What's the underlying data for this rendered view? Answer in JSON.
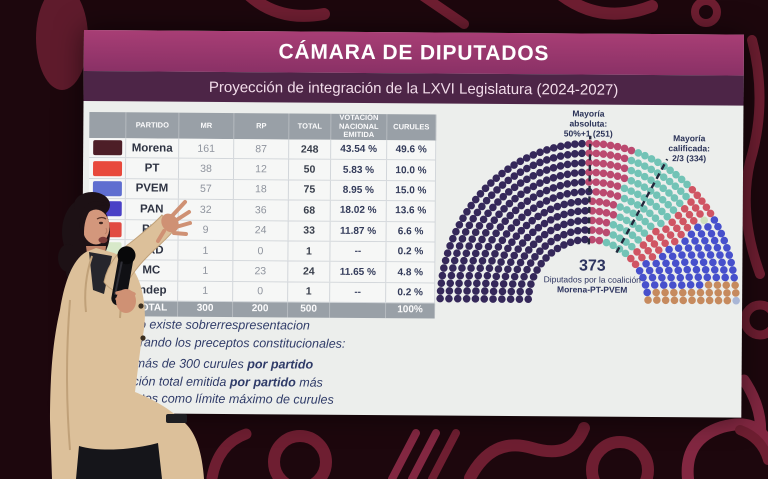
{
  "slide": {
    "title": "CÁMARA DE DIPUTADOS",
    "subtitle": "Proyección de integración de la LXVI Legislatura (2024-2027)"
  },
  "table": {
    "columns": [
      "PARTIDO",
      "MR",
      "RP",
      "TOTAL",
      "VOTACIÓN NACIONAL EMITIDA",
      "CURULES"
    ],
    "rows": [
      {
        "party": "Morena",
        "color": "#4d1e27",
        "mr": "161",
        "rp": "87",
        "total": "248",
        "votacion": "43.54 %",
        "curules": "49.6 %"
      },
      {
        "party": "PT",
        "color": "#e8493c",
        "mr": "38",
        "rp": "12",
        "total": "50",
        "votacion": "5.83 %",
        "curules": "10.0 %"
      },
      {
        "party": "PVEM",
        "color": "#5f6ed0",
        "mr": "57",
        "rp": "18",
        "total": "75",
        "votacion": "8.95 %",
        "curules": "15.0 %"
      },
      {
        "party": "PAN",
        "color": "#4a41c6",
        "mr": "32",
        "rp": "36",
        "total": "68",
        "votacion": "18.02 %",
        "curules": "13.6 %"
      },
      {
        "party": "PRI",
        "color": "#e14b42",
        "mr": "9",
        "rp": "24",
        "total": "33",
        "votacion": "11.87 %",
        "curules": "6.6 %"
      },
      {
        "party": "PRD",
        "color": "#d7e8c9",
        "mr": "1",
        "rp": "0",
        "total": "1",
        "votacion": "--",
        "curules": "0.2 %"
      },
      {
        "party": "MC",
        "color": "#e8923f",
        "mr": "1",
        "rp": "23",
        "total": "24",
        "votacion": "11.65 %",
        "curules": "4.8 %"
      },
      {
        "party": "Indep",
        "color": "#b9c4cc",
        "mr": "1",
        "rp": "0",
        "total": "1",
        "votacion": "--",
        "curules": "0.2 %"
      }
    ],
    "total_row": {
      "label": "TOTAL",
      "mr": "300",
      "rp": "200",
      "total": "500",
      "votacion": "",
      "curules": "100%"
    }
  },
  "notes": {
    "lines": [
      {
        "pre": "No existe sobrerrespresentacion",
        "bold": "",
        "post": ""
      },
      {
        "pre": "derando los preceptos constitucionales:",
        "bold": "",
        "post": ""
      },
      {
        "pre": "más de 300 curules ",
        "bold": "por partido",
        "post": ""
      },
      {
        "pre": "ación total emitida ",
        "bold": "por partido",
        "post": " más"
      },
      {
        "pre": "untos como límite máximo de curules",
        "bold": "",
        "post": ""
      }
    ]
  },
  "chart_data": {
    "type": "parliament-hemicycle",
    "title": "Proyección de integración de la LXVI Legislatura (2024-2027)",
    "total_seats": 500,
    "series": [
      {
        "name": "Morena",
        "seats": 248,
        "color": "#35285a"
      },
      {
        "name": "PT",
        "seats": 50,
        "color": "#bb4a70"
      },
      {
        "name": "PVEM",
        "seats": 75,
        "color": "#72c3b6"
      },
      {
        "name": "PRI",
        "seats": 33,
        "color": "#d05563"
      },
      {
        "name": "PRD",
        "seats": 1,
        "color": "#cfe0bd"
      },
      {
        "name": "PAN",
        "seats": 68,
        "color": "#4750cc"
      },
      {
        "name": "MC",
        "seats": 24,
        "color": "#c68a5e"
      },
      {
        "name": "Indep",
        "seats": 1,
        "color": "#a9b6d6"
      }
    ],
    "annotations": [
      {
        "seat": 251,
        "lines": [
          "Mayoría",
          "absoluta:",
          "50%+1 (251)"
        ]
      },
      {
        "seat": 334,
        "lines": [
          "Mayoría",
          "calificada:",
          "2/3 (334)"
        ]
      }
    ],
    "center_label": {
      "value": "373",
      "line1": "Diputados por la coalición",
      "line2": "Morena-PT-PVEM"
    }
  }
}
